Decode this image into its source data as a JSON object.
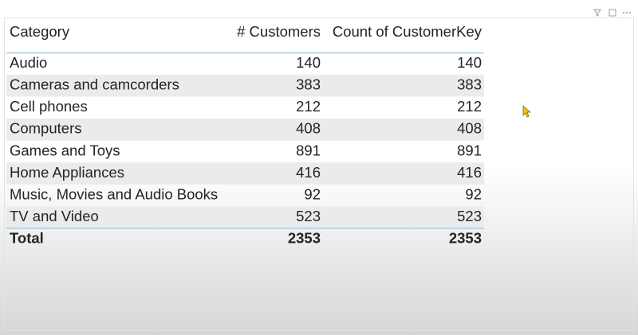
{
  "table": {
    "columns": [
      "Category",
      "# Customers",
      "Count of CustomerKey"
    ],
    "rows": [
      [
        "Audio",
        140,
        140
      ],
      [
        "Cameras and camcorders",
        383,
        383
      ],
      [
        "Cell phones",
        212,
        212
      ],
      [
        "Computers",
        408,
        408
      ],
      [
        "Games and Toys",
        891,
        891
      ],
      [
        "Home Appliances",
        416,
        416
      ],
      [
        "Music, Movies and Audio Books",
        92,
        92
      ],
      [
        "TV and Video",
        523,
        523
      ]
    ],
    "total": [
      "Total",
      2353,
      2353
    ]
  }
}
